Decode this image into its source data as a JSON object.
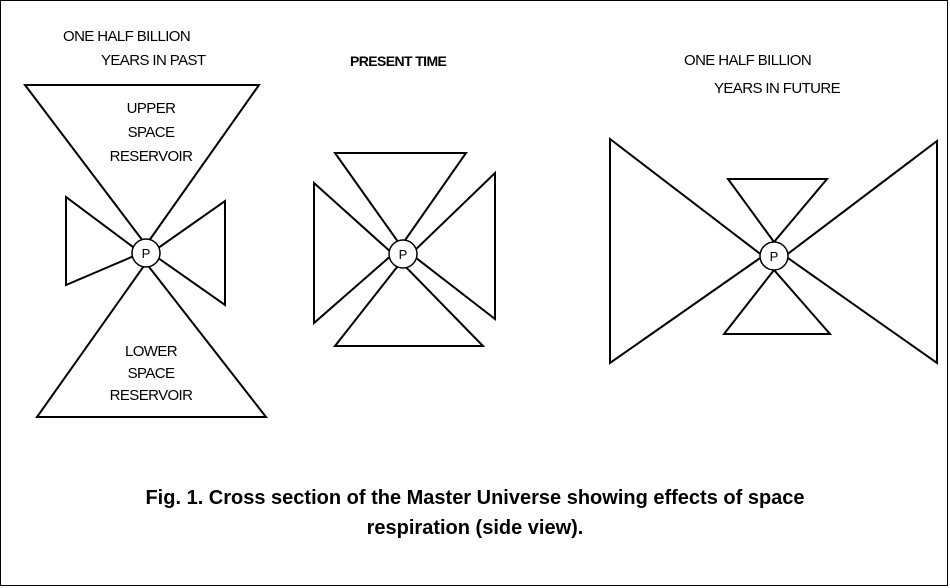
{
  "panels": {
    "past": {
      "heading_line1": "ONE HALF BILLION",
      "heading_line2": "YEARS IN PAST",
      "upper_reservoir": [
        "UPPER",
        "SPACE",
        "RESERVOIR"
      ],
      "lower_reservoir": [
        "LOWER",
        "SPACE",
        "RESERVOIR"
      ],
      "center_label": "P"
    },
    "present": {
      "heading": "PRESENT TIME",
      "center_label": "P"
    },
    "future": {
      "heading_line1": "ONE HALF BILLION",
      "heading_line2": "YEARS IN FUTURE",
      "center_label": "P"
    }
  },
  "caption": {
    "line1": "Fig. 1. Cross section of the Master Universe showing effects of space",
    "line2": "respiration (side view)."
  }
}
